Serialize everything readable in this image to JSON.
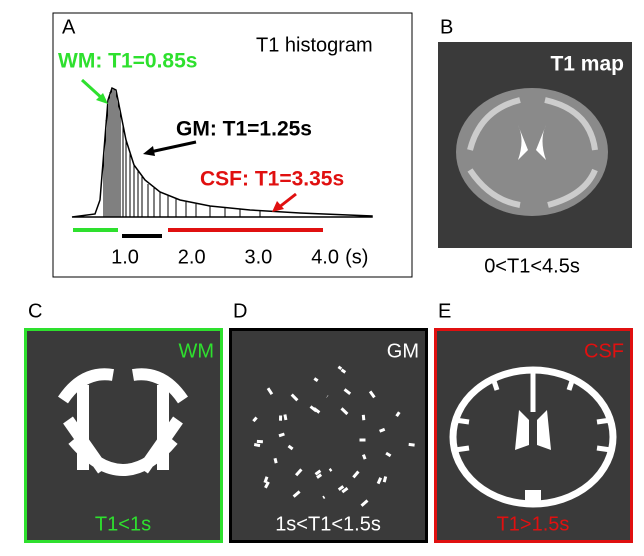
{
  "panels": [
    {
      "label": "A",
      "title": "T1 histogram",
      "annotations": [
        "WM: T1=0.85s",
        "GM: T1=1.25s",
        "CSF: T1=3.35s"
      ],
      "xticks": [
        {
          "value": 1,
          "label": "1.0"
        },
        {
          "value": 2,
          "label": "2.0"
        },
        {
          "value": 3,
          "label": "3.0"
        },
        {
          "value": 4,
          "label": "4.0"
        }
      ],
      "x_unit": "(s)"
    },
    {
      "label": "B",
      "title": "T1 map",
      "caption": "0<T1<4.5s"
    },
    {
      "label": "C",
      "title": "WM",
      "caption": "T1<1s"
    },
    {
      "label": "D",
      "title": "GM",
      "caption": "1s<T1<1.5s"
    },
    {
      "label": "E",
      "title": "CSF",
      "caption": "T1>1.5s"
    }
  ]
}
